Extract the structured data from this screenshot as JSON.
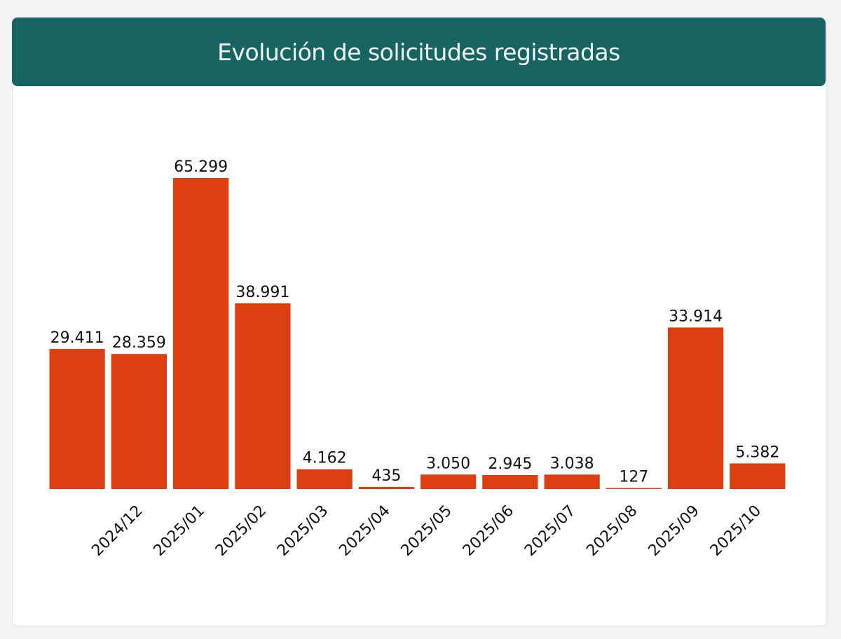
{
  "chart_data": {
    "type": "bar",
    "title": "Evolución de solicitudes registradas",
    "categories": [
      "",
      "2024/12",
      "2025/01",
      "2025/02",
      "2025/03",
      "2025/04",
      "2025/05",
      "2025/06",
      "2025/07",
      "2025/08",
      "2025/09",
      "2025/10"
    ],
    "values": [
      29411,
      28359,
      65299,
      38991,
      4162,
      435,
      3050,
      2945,
      3038,
      127,
      33914,
      5382
    ],
    "data_labels": [
      "29.411",
      "28.359",
      "65.299",
      "38.991",
      "4.162",
      "435",
      "3.050",
      "2.945",
      "3.038",
      "127",
      "33.914",
      "5.382"
    ],
    "xlabel": "",
    "ylabel": "",
    "grid": false,
    "legend": "none",
    "colors": {
      "bar": "#dc4010",
      "header": "#186462"
    }
  }
}
